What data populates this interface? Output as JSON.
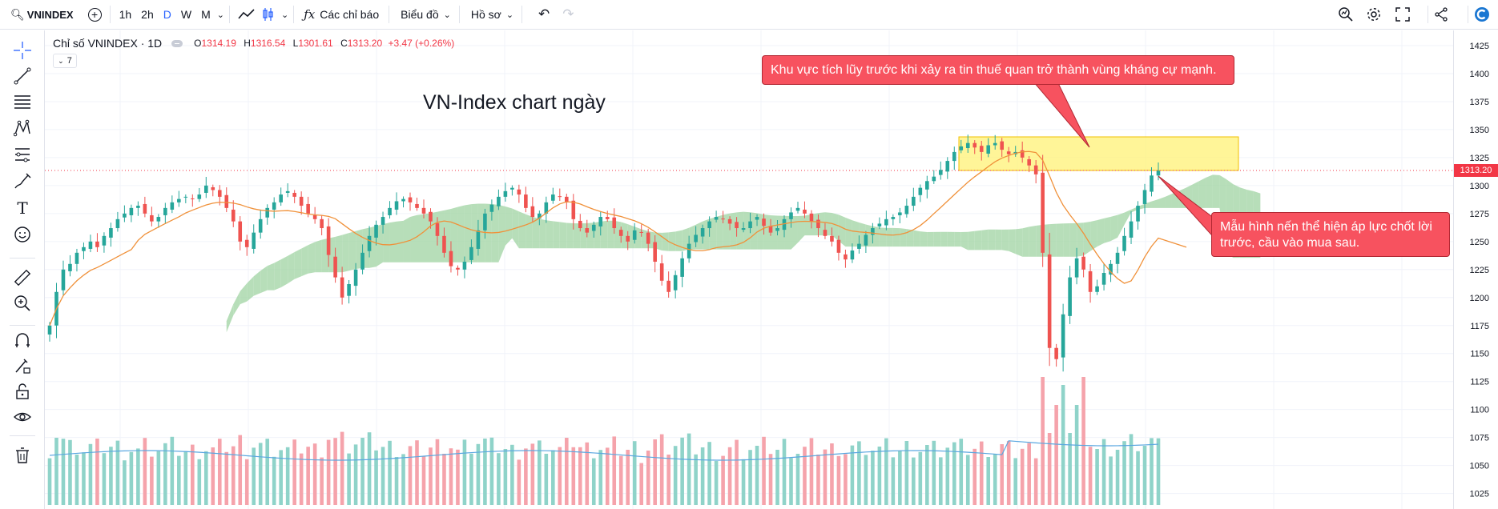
{
  "toolbar": {
    "symbol": "VNINDEX",
    "intervals": [
      "1h",
      "2h",
      "D",
      "W",
      "M"
    ],
    "active_interval": "D",
    "indicators_label": "Các chỉ báo",
    "chart_type_label": "Biểu đồ",
    "profile_label": "Hồ sơ"
  },
  "legend": {
    "title": "Chỉ số VNINDEX · 1D",
    "o_label": "O",
    "o_value": "1314.19",
    "h_label": "H",
    "h_value": "1316.54",
    "l_label": "L",
    "l_value": "1301.61",
    "c_label": "C",
    "c_value": "1313.20",
    "change": "+3.47 (+0.26%)",
    "collapse_count": "7"
  },
  "chart_title": "VN-Index chart ngày",
  "price_tag": "1313.20",
  "annotations": {
    "top": "Khu vực tích lũy trước khi xảy ra tin thuế quan trở thành vùng kháng cự mạnh.",
    "right": "Mẫu hình nến thể hiện áp lực chốt lời trước, cầu vào mua sau."
  },
  "colors": {
    "up": "#26a69a",
    "down": "#ef5350",
    "cloud_up": "#a5d6a7",
    "cloud_down": "#f8bbd0",
    "ma": "#f0913a",
    "callout": "#f7525f",
    "zone": "#fff176"
  },
  "chart_data": {
    "type": "candlestick",
    "y_axis_ticks": [
      1425,
      1400,
      1375,
      1350,
      1325,
      1300,
      1275,
      1250,
      1225,
      1200,
      1175,
      1150,
      1125,
      1100,
      1075,
      1050,
      1025
    ],
    "last_close": 1313.2,
    "close_series": [
      1175,
      1205,
      1225,
      1230,
      1240,
      1245,
      1250,
      1245,
      1255,
      1262,
      1270,
      1275,
      1280,
      1282,
      1275,
      1268,
      1272,
      1280,
      1285,
      1288,
      1290,
      1288,
      1292,
      1300,
      1296,
      1290,
      1280,
      1268,
      1250,
      1245,
      1258,
      1270,
      1280,
      1285,
      1292,
      1295,
      1290,
      1282,
      1275,
      1270,
      1262,
      1238,
      1218,
      1200,
      1212,
      1225,
      1240,
      1255,
      1265,
      1272,
      1280,
      1286,
      1288,
      1285,
      1280,
      1275,
      1268,
      1255,
      1240,
      1228,
      1225,
      1232,
      1245,
      1260,
      1275,
      1283,
      1290,
      1295,
      1298,
      1292,
      1280,
      1272,
      1275,
      1285,
      1292,
      1290,
      1285,
      1270,
      1262,
      1258,
      1265,
      1272,
      1270,
      1262,
      1255,
      1250,
      1260,
      1258,
      1248,
      1232,
      1215,
      1205,
      1220,
      1235,
      1248,
      1256,
      1262,
      1268,
      1272,
      1270,
      1266,
      1262,
      1262,
      1268,
      1272,
      1264,
      1258,
      1262,
      1270,
      1276,
      1280,
      1275,
      1268,
      1262,
      1255,
      1250,
      1240,
      1234,
      1242,
      1248,
      1256,
      1262,
      1266,
      1270,
      1272,
      1276,
      1282,
      1290,
      1298,
      1304,
      1308,
      1314,
      1322,
      1330,
      1335,
      1338,
      1334,
      1330,
      1336,
      1338,
      1332,
      1328,
      1330,
      1325,
      1318,
      1310,
      1240,
      1155,
      1145,
      1185,
      1218,
      1235,
      1225,
      1205,
      1210,
      1222,
      1230,
      1240,
      1255,
      1268,
      1282,
      1296,
      1309,
      1313.2
    ]
  }
}
